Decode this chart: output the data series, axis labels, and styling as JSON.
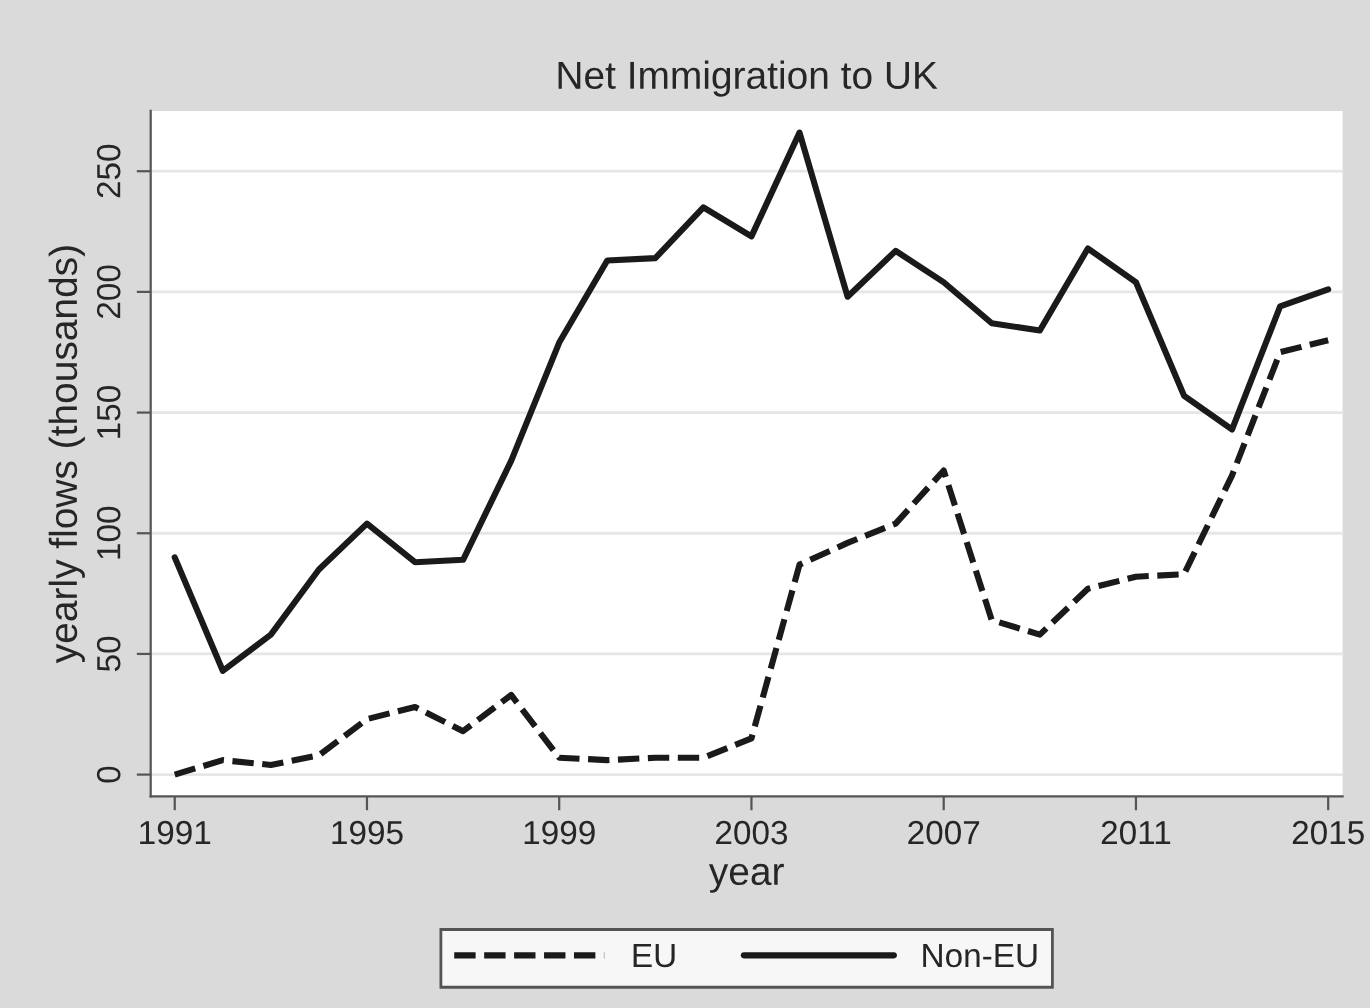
{
  "chart_data": {
    "type": "line",
    "title": "Net Immigration to UK",
    "xlabel": "year",
    "ylabel": "yearly flows (thousands)",
    "x": [
      1991,
      1992,
      1993,
      1994,
      1995,
      1996,
      1997,
      1998,
      1999,
      2000,
      2001,
      2002,
      2003,
      2004,
      2005,
      2006,
      2007,
      2008,
      2009,
      2010,
      2011,
      2012,
      2013,
      2014,
      2015
    ],
    "series": [
      {
        "name": "EU",
        "color": "#1a1a1a",
        "line_style": "dashed",
        "values": [
          0,
          6,
          4,
          8,
          23,
          28,
          18,
          33,
          7,
          6,
          7,
          7,
          15,
          87,
          96,
          104,
          126,
          64,
          58,
          77,
          82,
          83,
          124,
          175,
          180
        ]
      },
      {
        "name": "Non-EU",
        "color": "#1a1a1a",
        "line_style": "solid",
        "values": [
          90,
          43,
          58,
          85,
          104,
          88,
          89,
          130,
          179,
          213,
          214,
          235,
          223,
          266,
          198,
          217,
          204,
          187,
          184,
          218,
          204,
          157,
          143,
          194,
          201
        ]
      }
    ],
    "xlim": [
      1990.5,
      2015.3
    ],
    "ylim": [
      -9,
      275
    ],
    "xticks": [
      1991,
      1995,
      1999,
      2003,
      2007,
      2011,
      2015
    ],
    "yticks": [
      0,
      50,
      100,
      150,
      200,
      250
    ],
    "grid": "y",
    "legend": "bottom",
    "marker": "none"
  }
}
